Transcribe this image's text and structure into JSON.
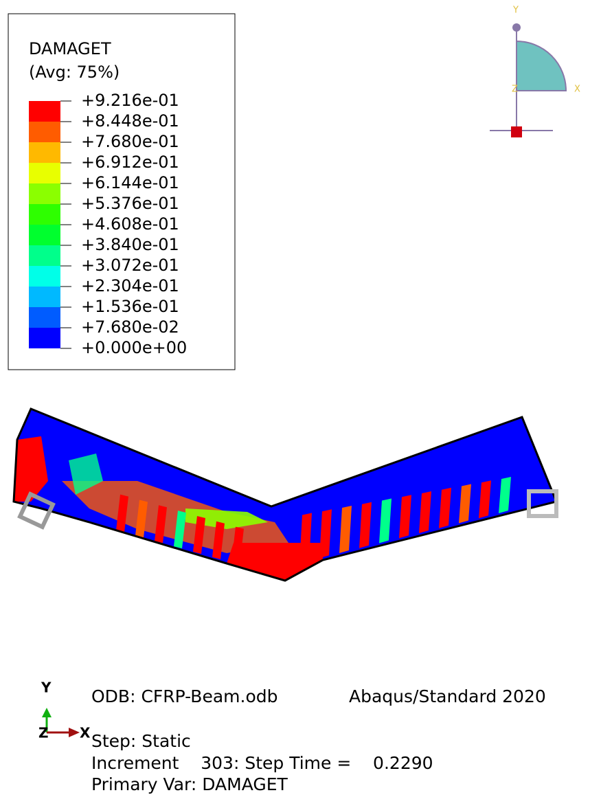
{
  "legend": {
    "title": "DAMAGET",
    "subtitle": "(Avg: 75%)",
    "labels": [
      "+9.216e-01",
      "+8.448e-01",
      "+7.680e-01",
      "+6.912e-01",
      "+6.144e-01",
      "+5.376e-01",
      "+4.608e-01",
      "+3.840e-01",
      "+3.072e-01",
      "+2.304e-01",
      "+1.536e-01",
      "+7.680e-02",
      "+0.000e+00"
    ],
    "colors": [
      "#ff0000",
      "#ff5c00",
      "#ffb900",
      "#e8ff00",
      "#8bff00",
      "#2eff00",
      "#00ff2e",
      "#00ff8b",
      "#00ffe8",
      "#00b9ff",
      "#005cff",
      "#0000ff"
    ]
  },
  "csys_triad": {
    "y": "Y",
    "x": "X",
    "z": "Z"
  },
  "view_triad": {
    "y": "Y",
    "x": "X",
    "z": "Z"
  },
  "info": {
    "odb": "ODB: CFRP-Beam.odb",
    "version": "Abaqus/Standard 2020",
    "step": "Step: Static",
    "increment": "Increment    303: Step Time =    0.2290",
    "primary_var": "Primary Var: DAMAGET"
  }
}
